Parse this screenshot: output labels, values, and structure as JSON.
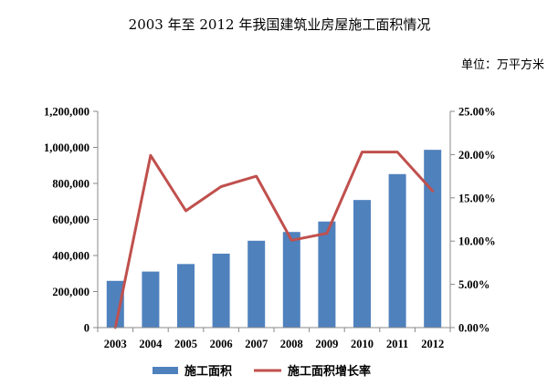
{
  "chart_data": {
    "type": "bar+line",
    "title": "2003 年至 2012 年我国建筑业房屋施工面积情况",
    "unit_label": "单位：万平方米",
    "categories": [
      "2003",
      "2004",
      "2005",
      "2006",
      "2007",
      "2008",
      "2009",
      "2010",
      "2011",
      "2012"
    ],
    "series": [
      {
        "name": "施工面积",
        "type": "bar",
        "axis": "left",
        "color": "#4F81BD",
        "values": [
          259300,
          310900,
          352700,
          410200,
          482000,
          530500,
          588600,
          708000,
          851800,
          986400
        ]
      },
      {
        "name": "施工面积增长率",
        "type": "line",
        "axis": "right",
        "color": "#C0504D",
        "values": [
          0.0,
          19.9,
          13.5,
          16.3,
          17.5,
          10.1,
          10.9,
          20.3,
          20.3,
          15.8
        ]
      }
    ],
    "y_left": {
      "min": 0,
      "max": 1200000,
      "ticks": [
        0,
        200000,
        400000,
        600000,
        800000,
        1000000,
        1200000
      ],
      "tick_labels": [
        "0",
        "200,000",
        "400,000",
        "600,000",
        "800,000",
        "1,000,000",
        "1,200,000"
      ]
    },
    "y_right": {
      "min": 0,
      "max": 25,
      "ticks": [
        0,
        5,
        10,
        15,
        20,
        25
      ],
      "tick_labels": [
        "0.00%",
        "5.00%",
        "10.00%",
        "15.00%",
        "20.00%",
        "25.00%"
      ]
    },
    "grid": false,
    "legend_position": "bottom"
  }
}
